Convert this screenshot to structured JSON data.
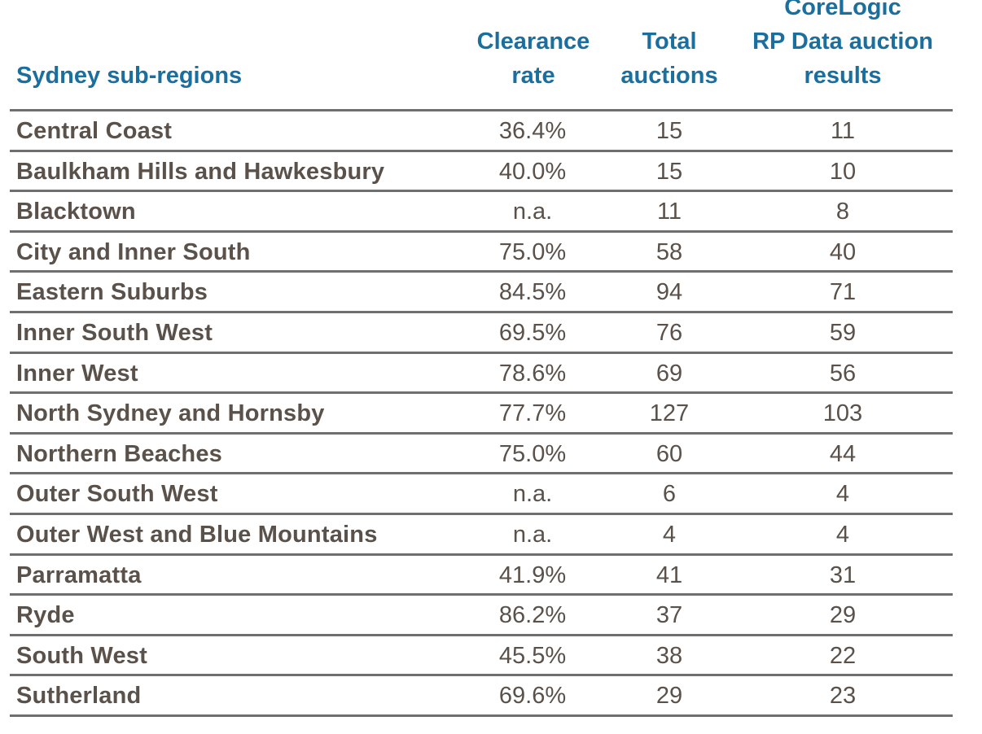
{
  "chart_data": {
    "type": "table",
    "columns": [
      "Sydney sub-regions",
      "Clearance rate",
      "Total auctions",
      "CoreLogic RP Data auction results"
    ],
    "header_lines": [
      [
        "Sydney sub-regions"
      ],
      [
        "Clearance",
        "rate"
      ],
      [
        "Total",
        "auctions"
      ],
      [
        "CoreLogic",
        "RP Data auction",
        "results"
      ]
    ],
    "rows": [
      [
        "Central Coast",
        "36.4%",
        "15",
        "11"
      ],
      [
        "Baulkham Hills and Hawkesbury",
        "40.0%",
        "15",
        "10"
      ],
      [
        "Blacktown",
        "n.a.",
        "11",
        "8"
      ],
      [
        "City and Inner South",
        "75.0%",
        "58",
        "40"
      ],
      [
        "Eastern Suburbs",
        "84.5%",
        "94",
        "71"
      ],
      [
        "Inner South West",
        "69.5%",
        "76",
        "59"
      ],
      [
        "Inner West",
        "78.6%",
        "69",
        "56"
      ],
      [
        "North Sydney and Hornsby",
        "77.7%",
        "127",
        "103"
      ],
      [
        "Northern Beaches",
        "75.0%",
        "60",
        "44"
      ],
      [
        "Outer South West",
        "n.a.",
        "6",
        "4"
      ],
      [
        "Outer West and Blue Mountains",
        "n.a.",
        "4",
        "4"
      ],
      [
        "Parramatta",
        "41.9%",
        "41",
        "31"
      ],
      [
        "Ryde",
        "86.2%",
        "37",
        "29"
      ],
      [
        "South West",
        "45.5%",
        "38",
        "22"
      ],
      [
        "Sutherland",
        "69.6%",
        "29",
        "23"
      ]
    ],
    "colors": {
      "header_text": "#1a6f9e",
      "body_text": "#5a514a",
      "rule": "#6f6f6f"
    }
  }
}
